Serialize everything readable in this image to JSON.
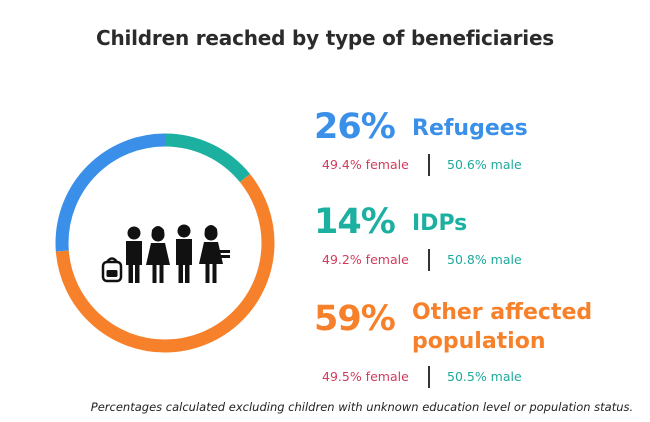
{
  "chart_data": {
    "type": "pie",
    "title": "Children reached by type of beneficiaries",
    "segments": [
      {
        "label": "Refugees",
        "percent_label": "26%",
        "value": 26,
        "color": "#3a8fe8",
        "female": "49.4% female",
        "male": "50.6% male"
      },
      {
        "label": "IDPs",
        "percent_label": "14%",
        "value": 14,
        "color": "#1cb0a0",
        "female": "49.2% female",
        "male": "50.8% male"
      },
      {
        "label": "Other affected population",
        "label_lines": [
          "Other affected",
          "population"
        ],
        "percent_label": "59%",
        "value": 59,
        "color": "#f7812a",
        "female": "49.5% female",
        "male": "50.5% male"
      }
    ],
    "footnote": "Percentages calculated excluding children with unknown education level or population status."
  },
  "icon": "children-group-icon"
}
